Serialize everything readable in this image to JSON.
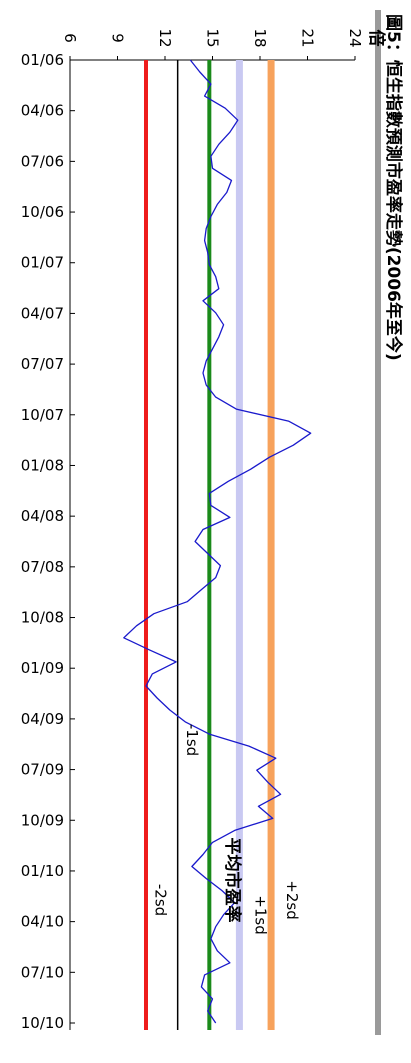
{
  "chart_data": {
    "type": "line",
    "title": "圖5：恒生指數預測市盈率走勢(2006年至今)",
    "ylabel": "倍",
    "yticks": [
      6,
      9,
      12,
      15,
      18,
      21,
      24
    ],
    "ylim": [
      6,
      24
    ],
    "x_tick_labels": [
      "01/06",
      "04/06",
      "07/06",
      "10/06",
      "01/07",
      "04/07",
      "07/07",
      "10/07",
      "01/08",
      "04/08",
      "07/08",
      "10/08",
      "01/09",
      "04/09",
      "07/09",
      "10/09",
      "01/10",
      "04/10",
      "07/10",
      "10/10"
    ],
    "series": [
      {
        "values": [
          13.6,
          14.2,
          14.9,
          14.5,
          15.8,
          16.6,
          16.1,
          15.4,
          14.9,
          15.0,
          16.2,
          15.9,
          15.3,
          14.9,
          14.6,
          14.5,
          14.7,
          14.8,
          15.2,
          15.4,
          14.4,
          15.2,
          15.7,
          15.4,
          15.0,
          14.6,
          14.4,
          14.6,
          15.2,
          16.5,
          19.8,
          21.2,
          20.1,
          18.6,
          17.4,
          16.0,
          14.8,
          14.9,
          16.1,
          14.4,
          13.9,
          14.7,
          15.5,
          15.2,
          14.3,
          13.4,
          11.3,
          10.2,
          9.4,
          11.0,
          12.7,
          11.2,
          10.8,
          11.5,
          12.3,
          13.3,
          14.8,
          17.3,
          19.0,
          17.8,
          18.5,
          19.3,
          17.9,
          18.8,
          16.4,
          15.0,
          14.4,
          13.7,
          14.6,
          15.6,
          16.4,
          15.7,
          15.2,
          14.9,
          15.3,
          16.1,
          14.5,
          14.3,
          15.0,
          14.7,
          15.2
        ]
      }
    ],
    "reference_lines": [
      {
        "label": "+2sd",
        "value": 18.7,
        "color": "#f7a25c"
      },
      {
        "label": "+1sd",
        "value": 16.7,
        "color": "#c9c9f2"
      },
      {
        "label": "平均市盈率",
        "value": 14.8,
        "color": "#1a8a1a"
      },
      {
        "label": "-1sd",
        "value": 12.8,
        "color": "#000000"
      },
      {
        "label": "-2sd",
        "value": 10.8,
        "color": "#ee1c1c"
      }
    ],
    "line_color": "#1a1acc"
  }
}
